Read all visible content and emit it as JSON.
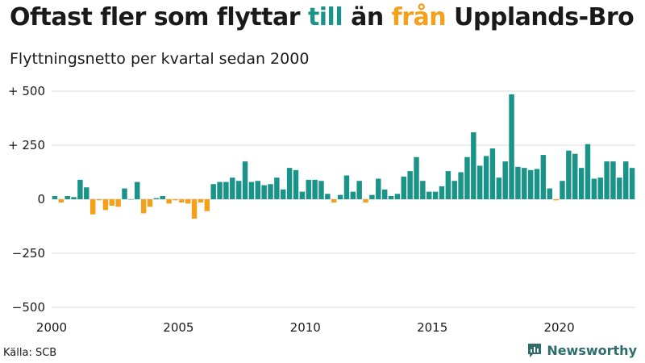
{
  "title_parts": {
    "before": "Oftast fler som flyttar ",
    "highlight1": "till",
    "middle": " än ",
    "highlight2": "från",
    "after": " Upplands-Bro"
  },
  "subtitle": "Flyttningsnetto per kvartal sedan 2000",
  "source": "Källa: SCB",
  "brand": "Newsworthy",
  "colors": {
    "positive": "#1a9488",
    "negative": "#f5a01a",
    "brand": "#2f6d6d"
  },
  "chart_data": {
    "type": "bar",
    "x_start": "2000 Q1",
    "interval": "quarter",
    "ylim": [
      -500,
      500
    ],
    "y_ticks": [
      500,
      250,
      0,
      -250,
      -500
    ],
    "y_tick_labels": [
      "+ 500",
      "+ 250",
      "0",
      "−250",
      "−500"
    ],
    "x_ticks": [
      2000,
      2005,
      2010,
      2015,
      2020
    ],
    "x_tick_labels": [
      "2000",
      "2005",
      "2010",
      "2015",
      "2020"
    ],
    "grid": true,
    "values": [
      15,
      -15,
      15,
      10,
      90,
      55,
      -70,
      -5,
      -50,
      -30,
      -35,
      50,
      0,
      80,
      -65,
      -35,
      5,
      15,
      -20,
      -5,
      -15,
      -20,
      -90,
      -15,
      -55,
      70,
      80,
      80,
      100,
      85,
      175,
      80,
      85,
      65,
      70,
      100,
      45,
      145,
      135,
      35,
      90,
      90,
      85,
      25,
      -15,
      20,
      110,
      35,
      85,
      -15,
      20,
      95,
      45,
      15,
      25,
      105,
      130,
      195,
      85,
      35,
      35,
      60,
      130,
      85,
      125,
      195,
      310,
      155,
      200,
      235,
      100,
      175,
      485,
      150,
      145,
      135,
      140,
      205,
      50,
      -5,
      85,
      225,
      210,
      145,
      255,
      95,
      100,
      175,
      175,
      100,
      175,
      145
    ]
  }
}
